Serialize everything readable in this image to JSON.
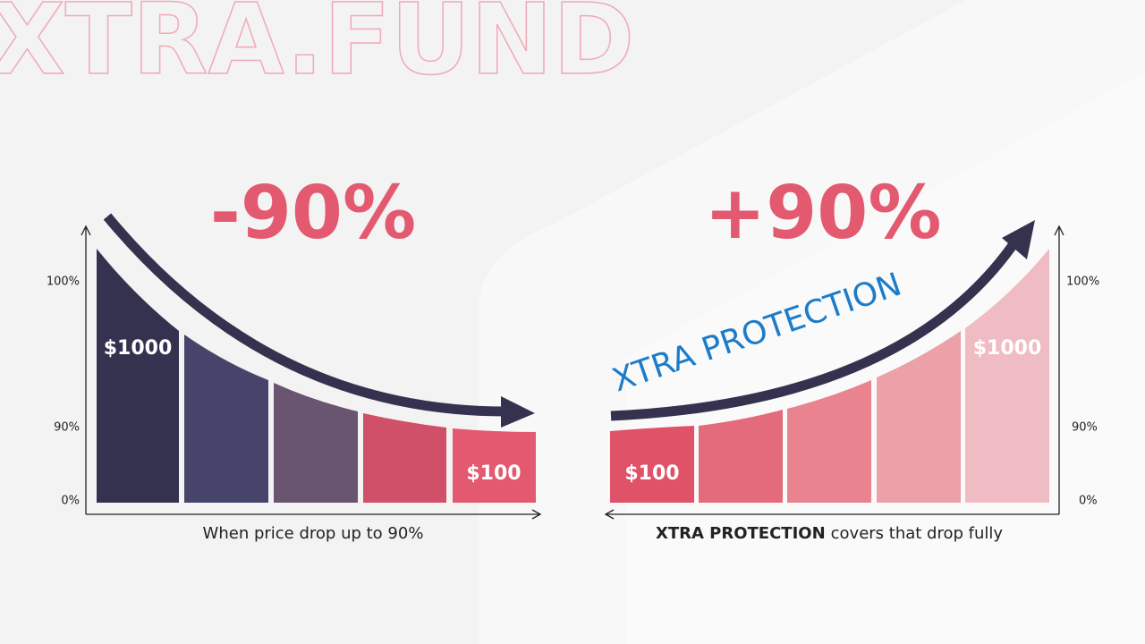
{
  "brand": "XTRA.FUND",
  "left": {
    "headline": "-90%",
    "axis_labels": [
      "100%",
      "90%",
      "0%"
    ],
    "bar_labels": [
      "$1000",
      "$100"
    ],
    "caption": "When price drop up to 90%"
  },
  "right": {
    "headline": "+90%",
    "arrow_label": "XTRA PROTECTION",
    "axis_labels": [
      "100%",
      "90%",
      "0%"
    ],
    "bar_labels": [
      "$100",
      "$1000"
    ],
    "caption_bold": "XTRA PROTECTION",
    "caption_rest": "covers that drop fully"
  }
}
